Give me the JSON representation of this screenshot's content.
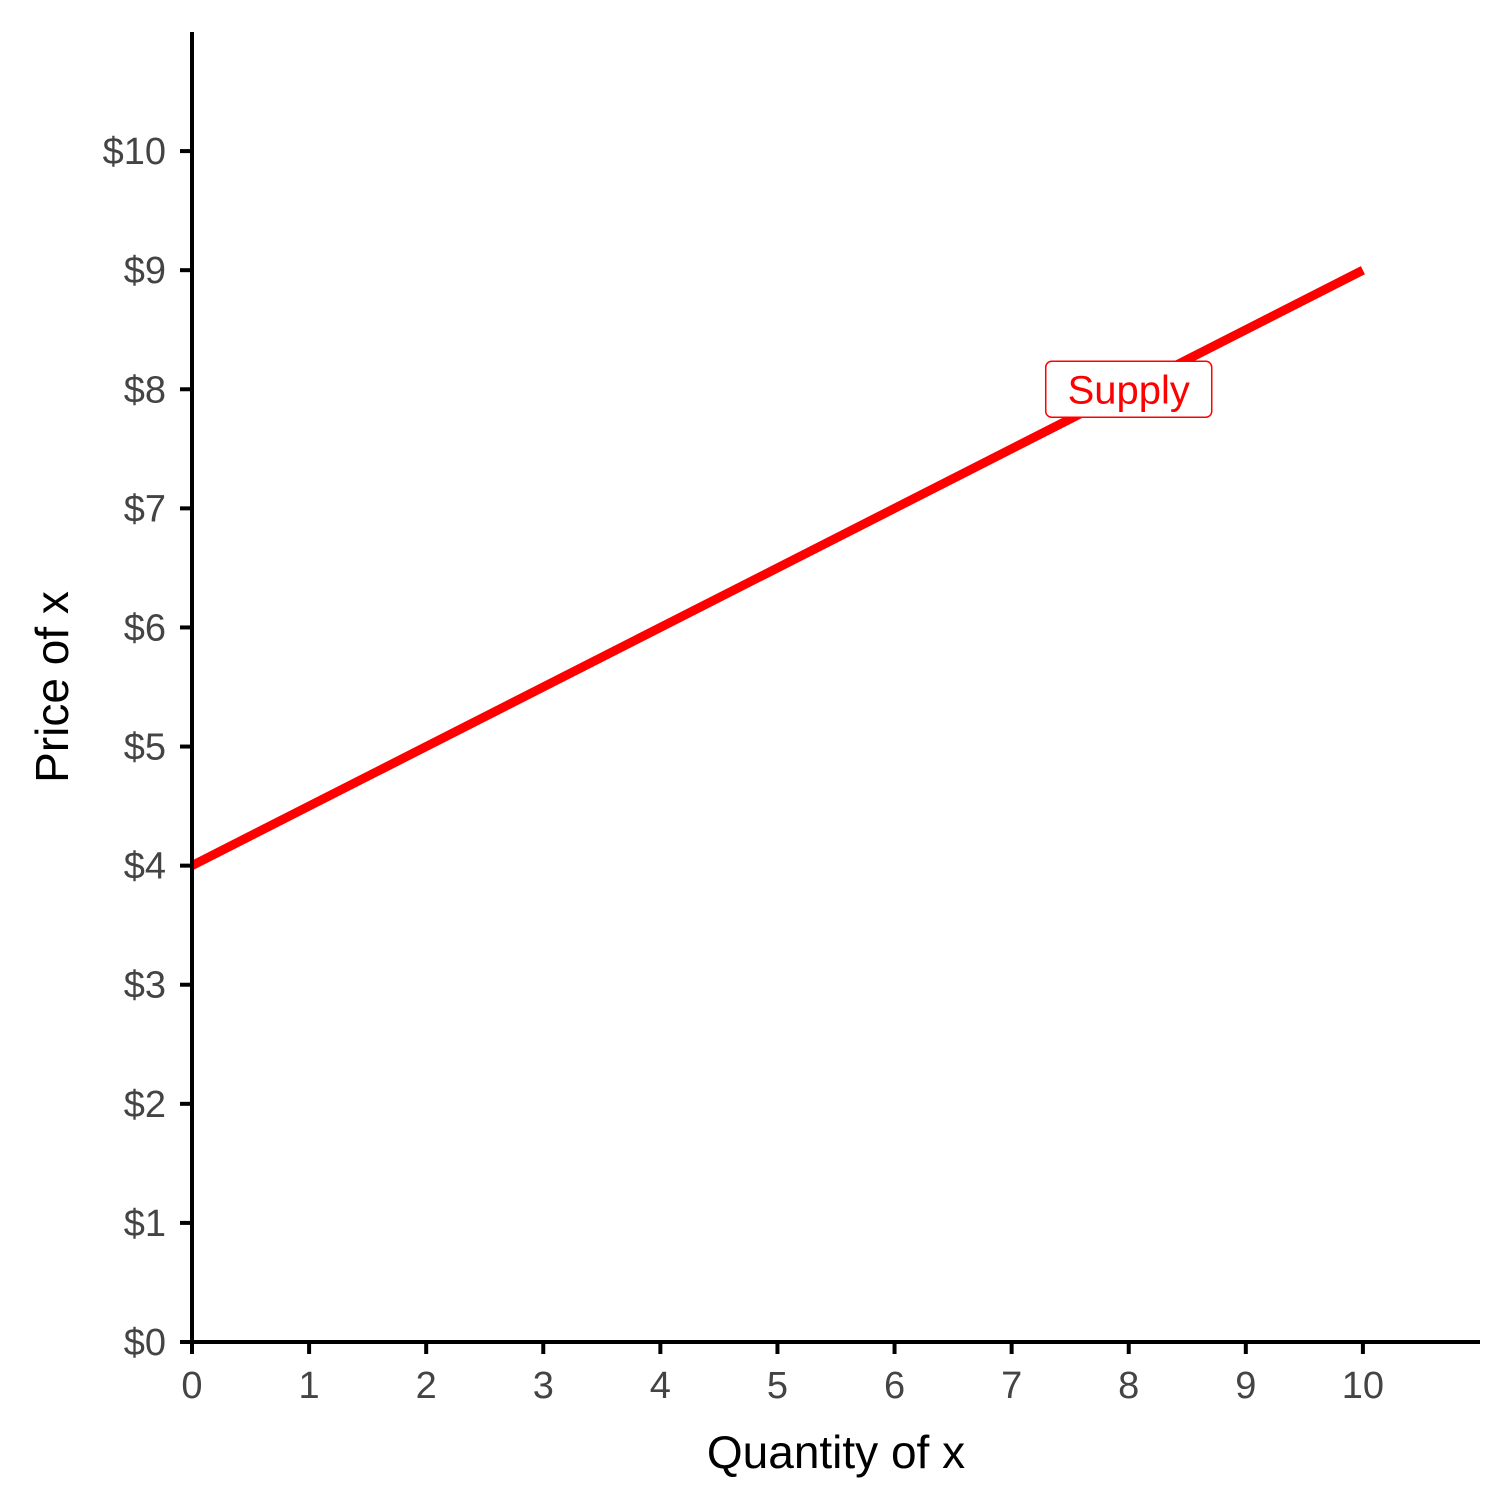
{
  "chart_data": {
    "type": "line",
    "xlabel": "Quantity of x",
    "ylabel": "Price of x",
    "xlim": [
      0,
      11
    ],
    "ylim": [
      0,
      11
    ],
    "x_ticks": [
      0,
      1,
      2,
      3,
      4,
      5,
      6,
      7,
      8,
      9,
      10
    ],
    "x_tick_labels": [
      "0",
      "1",
      "2",
      "3",
      "4",
      "5",
      "6",
      "7",
      "8",
      "9",
      "10"
    ],
    "y_ticks": [
      0,
      1,
      2,
      3,
      4,
      5,
      6,
      7,
      8,
      9,
      10
    ],
    "y_tick_labels": [
      "$0",
      "$1",
      "$2",
      "$3",
      "$4",
      "$5",
      "$6",
      "$7",
      "$8",
      "$9",
      "$10"
    ],
    "grid": false,
    "series": [
      {
        "name": "Supply",
        "color": "#ff0000",
        "x": [
          0,
          10
        ],
        "y": [
          4,
          9
        ]
      }
    ],
    "annotations": [
      {
        "text": "Supply",
        "x": 8,
        "y": 8,
        "color": "#ff0000",
        "boxed": true
      }
    ]
  }
}
